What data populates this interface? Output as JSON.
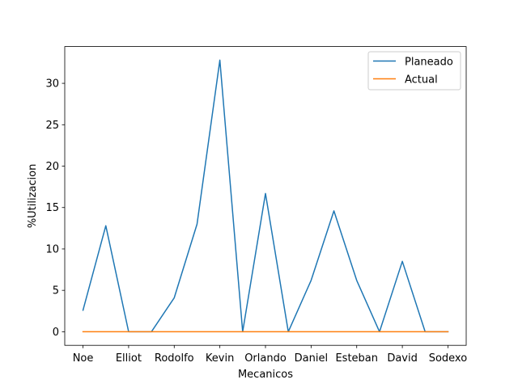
{
  "chart_data": {
    "type": "line",
    "title": "",
    "xlabel": "Mecanicos",
    "ylabel": "%Utilizacion",
    "x": [
      0,
      1,
      2,
      3,
      4,
      5,
      6,
      7,
      8,
      9,
      10,
      11,
      12,
      13,
      14,
      15,
      16
    ],
    "xticks": [
      {
        "x": 0,
        "label": "Noe"
      },
      {
        "x": 2,
        "label": "Elliot"
      },
      {
        "x": 4,
        "label": "Rodolfo"
      },
      {
        "x": 6,
        "label": "Kevin"
      },
      {
        "x": 8,
        "label": "Orlando"
      },
      {
        "x": 10,
        "label": "Daniel"
      },
      {
        "x": 12,
        "label": "Esteban"
      },
      {
        "x": 14,
        "label": "David"
      },
      {
        "x": 16,
        "label": "Sodexo"
      }
    ],
    "yticks": [
      0,
      5,
      10,
      15,
      20,
      25,
      30
    ],
    "xlim": [
      -0.8,
      16.8
    ],
    "ylim": [
      -1.64,
      34.44
    ],
    "grid": false,
    "legend_position": "upper right",
    "series": [
      {
        "name": "Planeado",
        "color": "#1f77b4",
        "values": [
          2.6,
          12.8,
          0,
          0,
          4.1,
          13.0,
          32.8,
          0,
          16.7,
          0,
          6.2,
          14.6,
          6.2,
          0,
          8.5,
          0,
          0
        ]
      },
      {
        "name": "Actual",
        "color": "#ff7f0e",
        "values": [
          0,
          0,
          0,
          0,
          0,
          0,
          0,
          0,
          0,
          0,
          0,
          0,
          0,
          0,
          0,
          0,
          0
        ]
      }
    ]
  }
}
